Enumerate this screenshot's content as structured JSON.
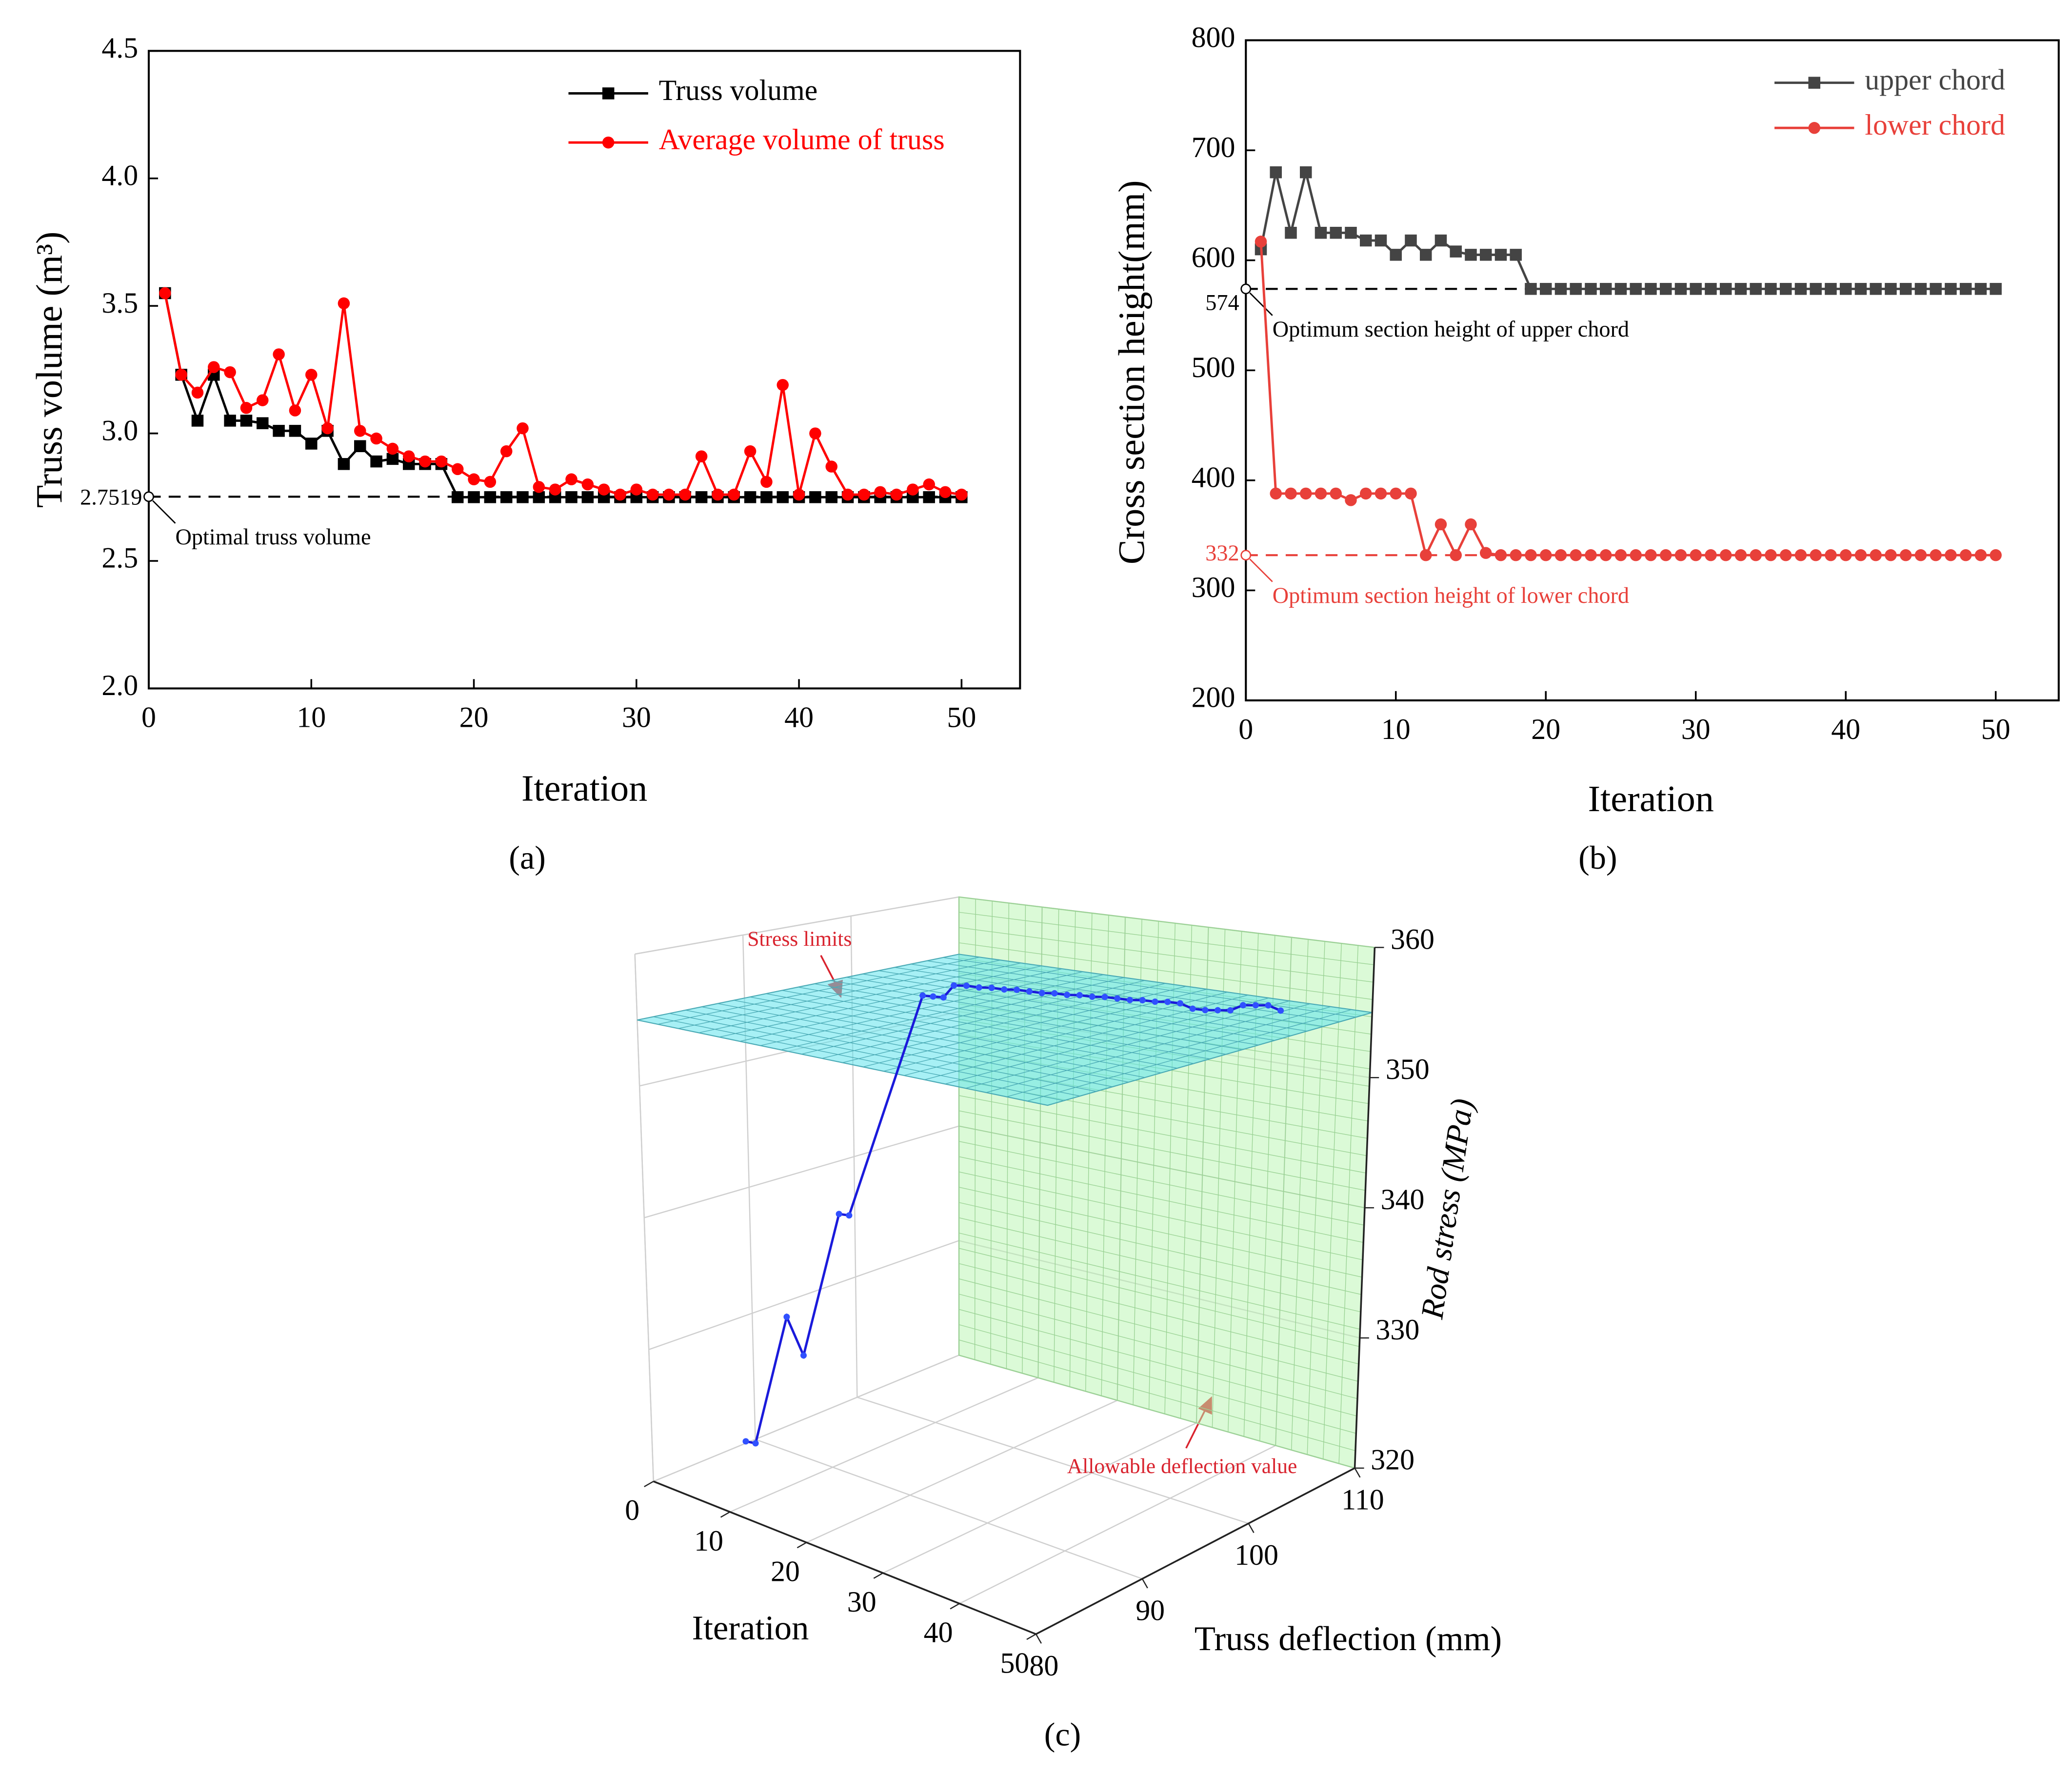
{
  "chart_data": [
    {
      "type": "line",
      "caption": "(a)",
      "xlabel": "Iteration",
      "ylabel": "Truss volume (m³)",
      "x": [
        1,
        2,
        3,
        4,
        5,
        6,
        7,
        8,
        9,
        10,
        11,
        12,
        13,
        14,
        15,
        16,
        17,
        18,
        19,
        20,
        21,
        22,
        23,
        24,
        25,
        26,
        27,
        28,
        29,
        30,
        31,
        32,
        33,
        34,
        35,
        36,
        37,
        38,
        39,
        40,
        41,
        42,
        43,
        44,
        45,
        46,
        47,
        48,
        49,
        50
      ],
      "series": [
        {
          "name": "Truss volume",
          "color": "#000000",
          "marker": "square",
          "values": [
            3.55,
            3.23,
            3.05,
            3.23,
            3.05,
            3.05,
            3.04,
            3.01,
            3.01,
            2.96,
            3.01,
            2.88,
            2.95,
            2.89,
            2.9,
            2.88,
            2.88,
            2.88,
            2.75,
            2.75,
            2.75,
            2.75,
            2.75,
            2.75,
            2.75,
            2.75,
            2.75,
            2.75,
            2.75,
            2.75,
            2.75,
            2.75,
            2.75,
            2.75,
            2.75,
            2.75,
            2.75,
            2.75,
            2.75,
            2.75,
            2.75,
            2.75,
            2.75,
            2.75,
            2.75,
            2.75,
            2.75,
            2.75,
            2.75,
            2.75
          ]
        },
        {
          "name": "Average volume of truss",
          "color": "#ff0000",
          "marker": "circle",
          "values": [
            3.55,
            3.23,
            3.16,
            3.26,
            3.24,
            3.1,
            3.13,
            3.31,
            3.09,
            3.23,
            3.02,
            3.51,
            3.01,
            2.98,
            2.94,
            2.91,
            2.89,
            2.89,
            2.86,
            2.82,
            2.81,
            2.93,
            3.02,
            2.79,
            2.78,
            2.82,
            2.8,
            2.78,
            2.76,
            2.78,
            2.76,
            2.76,
            2.76,
            2.91,
            2.76,
            2.76,
            2.93,
            2.81,
            3.19,
            2.76,
            3.0,
            2.87,
            2.76,
            2.76,
            2.77,
            2.76,
            2.78,
            2.8,
            2.77,
            2.76
          ]
        }
      ],
      "xlim": [
        0,
        53.6
      ],
      "ylim": [
        2,
        4.5
      ],
      "xticks": [
        0,
        10,
        20,
        30,
        40,
        50
      ],
      "yticks": [
        {
          "value": 2,
          "label": "2.0"
        },
        2.5,
        {
          "value": 3,
          "label": "3.0"
        },
        3.5,
        {
          "value": 4,
          "label": "4.0"
        },
        4.5
      ],
      "legend": "upper right",
      "references": [
        {
          "value": 2.7519,
          "text": "Optimal truss volume",
          "color": "#000000"
        }
      ]
    },
    {
      "type": "line",
      "caption": "(b)",
      "xlabel": "Iteration",
      "ylabel": "Cross section height(mm)",
      "x": [
        1,
        2,
        3,
        4,
        5,
        6,
        7,
        8,
        9,
        10,
        11,
        12,
        13,
        14,
        15,
        16,
        17,
        18,
        19,
        20,
        21,
        22,
        23,
        24,
        25,
        26,
        27,
        28,
        29,
        30,
        31,
        32,
        33,
        34,
        35,
        36,
        37,
        38,
        39,
        40,
        41,
        42,
        43,
        44,
        45,
        46,
        47,
        48,
        49,
        50
      ],
      "series": [
        {
          "name": "upper chord",
          "color": "#444444",
          "marker": "square",
          "values": [
            610,
            680,
            625,
            680,
            625,
            625,
            625,
            618,
            618,
            605,
            618,
            605,
            618,
            608,
            605,
            605,
            605,
            605,
            574,
            574,
            574,
            574,
            574,
            574,
            574,
            574,
            574,
            574,
            574,
            574,
            574,
            574,
            574,
            574,
            574,
            574,
            574,
            574,
            574,
            574,
            574,
            574,
            574,
            574,
            574,
            574,
            574,
            574,
            574,
            574
          ]
        },
        {
          "name": "lower chord",
          "color": "#e8403a",
          "marker": "circle",
          "values": [
            617,
            388,
            388,
            388,
            388,
            388,
            382,
            388,
            388,
            388,
            388,
            332,
            360,
            332,
            360,
            334,
            332,
            332,
            332,
            332,
            332,
            332,
            332,
            332,
            332,
            332,
            332,
            332,
            332,
            332,
            332,
            332,
            332,
            332,
            332,
            332,
            332,
            332,
            332,
            332,
            332,
            332,
            332,
            332,
            332,
            332,
            332,
            332,
            332,
            332
          ]
        }
      ],
      "xlim": [
        0,
        54.2
      ],
      "ylim": [
        200,
        800
      ],
      "xticks": [
        0,
        10,
        20,
        30,
        40,
        50
      ],
      "yticks": [
        200,
        300,
        400,
        500,
        600,
        700,
        800
      ],
      "legend": "upper right",
      "references": [
        {
          "value": 574,
          "text": "Optimum section height of upper chord",
          "color": "#000000"
        },
        {
          "value": 332,
          "text": "Optimum section height of lower chord",
          "color": "#e8403a"
        }
      ]
    },
    {
      "type": "line3d",
      "caption": "(c)",
      "xlabel": "Iteration",
      "ylabel": "Truss deflection (mm)",
      "zlabel": "Rod stress (MPa)",
      "xlim": [
        0,
        50
      ],
      "ylim": [
        80,
        110
      ],
      "zlim": [
        320,
        360
      ],
      "xticks": [
        0,
        10,
        20,
        30,
        40,
        50
      ],
      "yticks": [
        80,
        90,
        100,
        110
      ],
      "zticks": [
        320,
        330,
        340,
        350,
        360
      ],
      "series": [
        {
          "color": "#1a1adb",
          "x": [
            4,
            5,
            8,
            9,
            12,
            13,
            15,
            16,
            17,
            18,
            19,
            20,
            21,
            22,
            23,
            24,
            25,
            26,
            27,
            28,
            29,
            30,
            31,
            32,
            33,
            34,
            35,
            36,
            37,
            38,
            39,
            40,
            41,
            42,
            43,
            44
          ],
          "y": [
            86.1,
            86.3,
            87.3,
            88.1,
            89.4,
            89.6,
            95.1,
            95.3,
            95.5,
            95.7,
            96.1,
            96.5,
            96.9,
            97.3,
            97.7,
            98.1,
            98.5,
            98.9,
            99.3,
            99.7,
            100.1,
            100.5,
            100.9,
            101.3,
            101.7,
            102.1,
            102.5,
            102.9,
            103.3,
            103.7,
            104.1,
            104.5,
            104.9,
            105.3,
            105.7,
            106.1
          ],
          "z": [
            322,
            322,
            332,
            329,
            340,
            340,
            356,
            356,
            356,
            357,
            357,
            356.9,
            356.9,
            356.8,
            356.8,
            356.7,
            356.6,
            356.6,
            356.5,
            356.5,
            356.4,
            356.4,
            356.3,
            356.2,
            356.2,
            356.1,
            356.1,
            356.0,
            355.6,
            355.5,
            355.5,
            355.5,
            355.9,
            355.9,
            355.9,
            355.5
          ]
        }
      ],
      "stress_limit": {
        "value": 355,
        "text": "Stress limits"
      },
      "deflection_limit": {
        "value": 110,
        "text": "Allowable deflection value"
      }
    }
  ]
}
